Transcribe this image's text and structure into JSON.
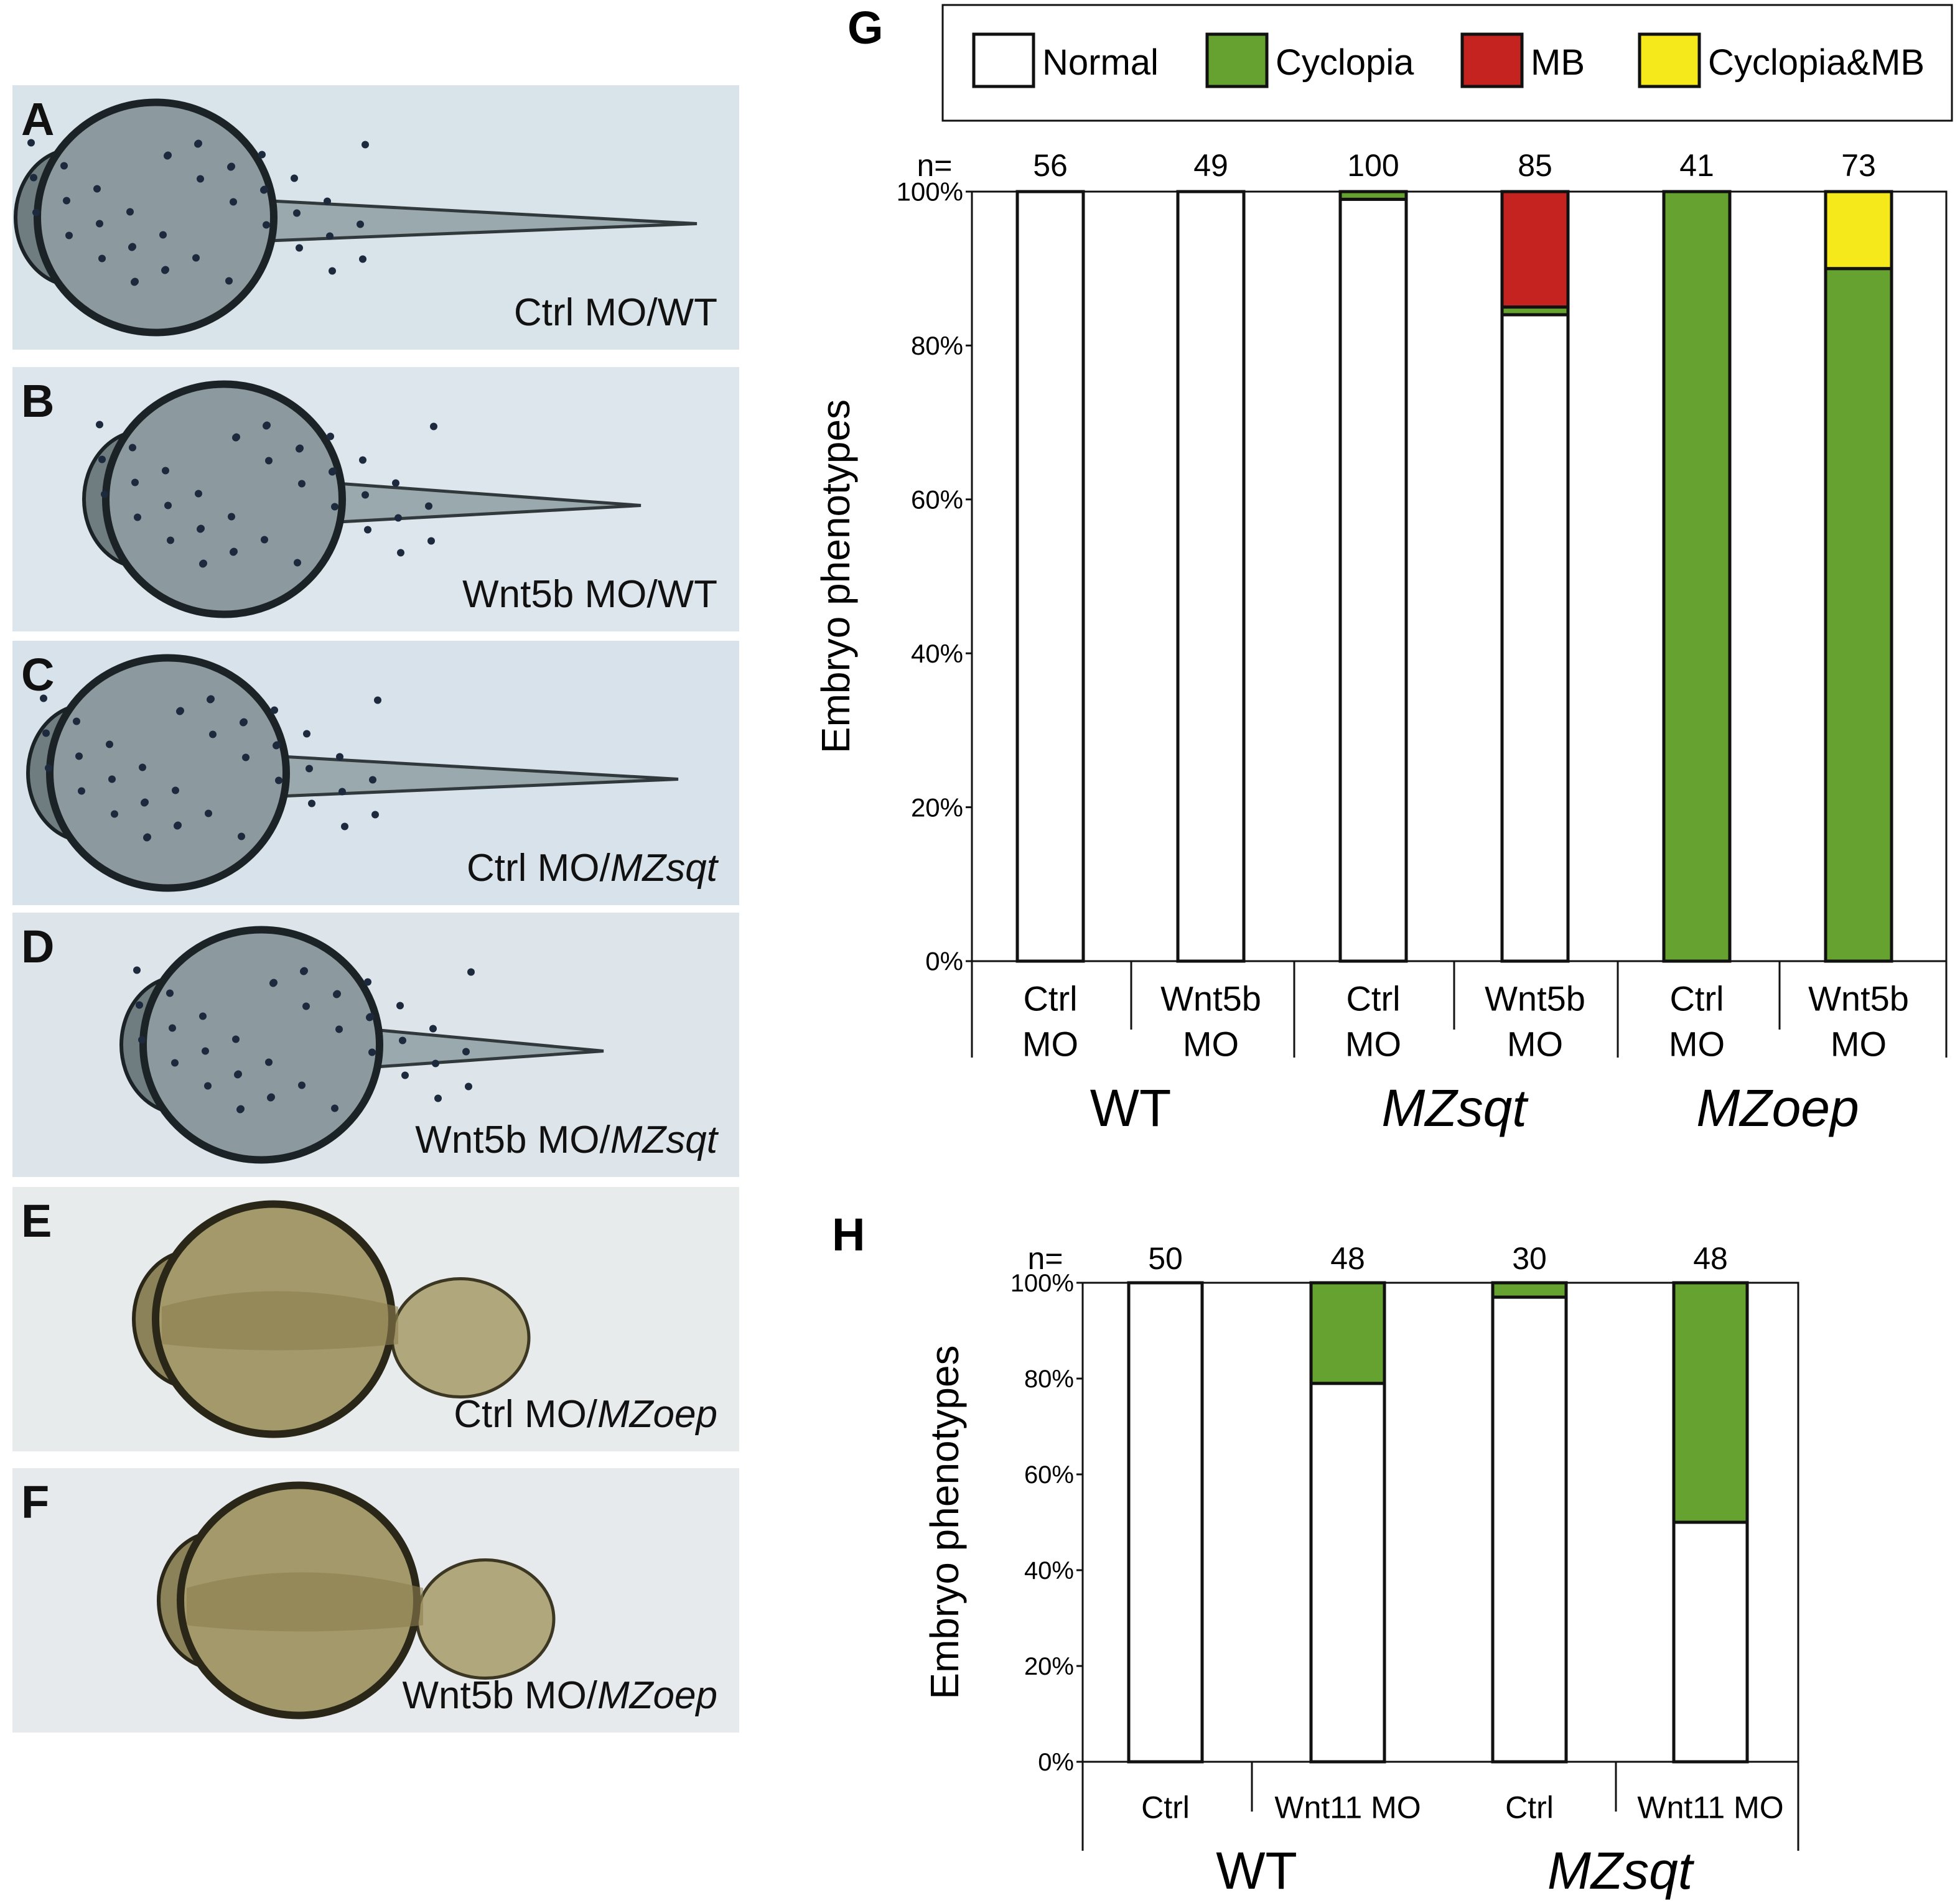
{
  "photo_panels": [
    {
      "label": "A",
      "caption_plain": "Ctrl MO/WT",
      "caption_italic": ""
    },
    {
      "label": "B",
      "caption_plain": "Wnt5b MO/WT",
      "caption_italic": ""
    },
    {
      "label": "C",
      "caption_plain": "Ctrl MO/",
      "caption_italic": "MZsqt"
    },
    {
      "label": "D",
      "caption_plain": "Wnt5b MO/",
      "caption_italic": "MZsqt"
    },
    {
      "label": "E",
      "caption_plain": "Ctrl MO/",
      "caption_italic": "MZoep"
    },
    {
      "label": "F",
      "caption_plain": "Wnt5b MO/",
      "caption_italic": "MZoep"
    }
  ],
  "chart_data": [
    {
      "panel_label": "G",
      "type": "bar",
      "stacked": true,
      "ylabel": "Embryo phenotypes",
      "yticks": [
        "0%",
        "20%",
        "40%",
        "60%",
        "80%",
        "100%"
      ],
      "ylim": [
        0,
        100
      ],
      "n_prefix": "n=",
      "categories": [
        "Ctrl MO",
        "Wnt5b MO",
        "Ctrl MO",
        "Wnt5b MO",
        "Ctrl MO",
        "Wnt5b MO"
      ],
      "category_lines": [
        [
          "Ctrl",
          "MO"
        ],
        [
          "Wnt5b",
          "MO"
        ],
        [
          "Ctrl",
          "MO"
        ],
        [
          "Wnt5b",
          "MO"
        ],
        [
          "Ctrl",
          "MO"
        ],
        [
          "Wnt5b",
          "MO"
        ]
      ],
      "groups": [
        {
          "label": "WT",
          "italic": false,
          "members": [
            0,
            1
          ]
        },
        {
          "label": "MZsqt",
          "italic": true,
          "members": [
            2,
            3
          ]
        },
        {
          "label": "MZoep",
          "italic": true,
          "members": [
            4,
            5
          ]
        }
      ],
      "n": [
        "56",
        "49",
        "100",
        "85",
        "41",
        "73"
      ],
      "legend": {
        "position": "top",
        "entries": [
          "Normal",
          "Cyclopia",
          "MB",
          "Cyclopia&MB"
        ]
      },
      "series": [
        {
          "name": "Normal",
          "color": "#ffffff",
          "values": [
            100,
            100,
            99,
            84,
            0,
            0
          ]
        },
        {
          "name": "Cyclopia",
          "color": "#66a22f",
          "values": [
            0,
            0,
            1,
            1,
            100,
            90
          ]
        },
        {
          "name": "MB",
          "color": "#c4231f",
          "values": [
            0,
            0,
            0,
            15,
            0,
            0
          ]
        },
        {
          "name": "Cyclopia&MB",
          "color": "#f5e91c",
          "values": [
            0,
            0,
            0,
            0,
            0,
            10
          ]
        }
      ]
    },
    {
      "panel_label": "H",
      "type": "bar",
      "stacked": true,
      "ylabel": "Embryo phenotypes",
      "yticks": [
        "0%",
        "20%",
        "40%",
        "60%",
        "80%",
        "100%"
      ],
      "ylim": [
        0,
        100
      ],
      "n_prefix": "n=",
      "categories": [
        "Ctrl",
        "Wnt11 MO",
        "Ctrl",
        "Wnt11 MO"
      ],
      "category_lines": [
        [
          "Ctrl"
        ],
        [
          "Wnt11 MO"
        ],
        [
          "Ctrl"
        ],
        [
          "Wnt11 MO"
        ]
      ],
      "groups": [
        {
          "label": "WT",
          "italic": false,
          "members": [
            0,
            1
          ]
        },
        {
          "label": "MZsqt",
          "italic": true,
          "members": [
            2,
            3
          ]
        }
      ],
      "n": [
        "50",
        "48",
        "30",
        "48"
      ],
      "series": [
        {
          "name": "Normal",
          "color": "#ffffff",
          "values": [
            100,
            79,
            97,
            50
          ]
        },
        {
          "name": "Cyclopia",
          "color": "#66a22f",
          "values": [
            0,
            21,
            3,
            50
          ]
        }
      ]
    }
  ]
}
